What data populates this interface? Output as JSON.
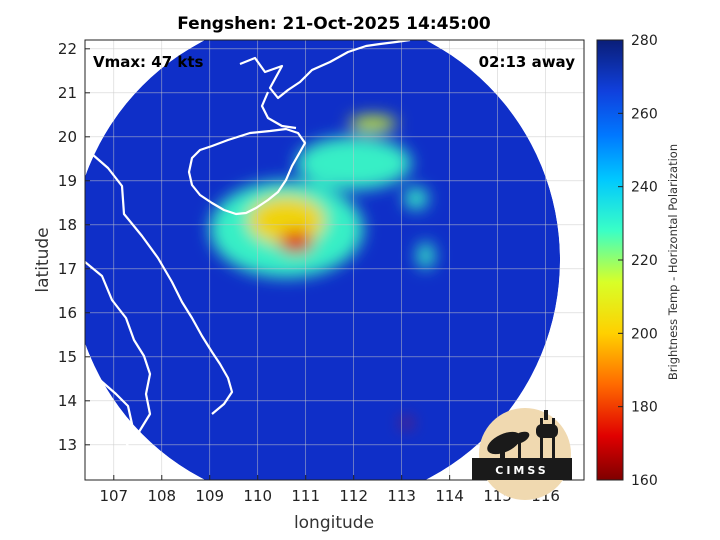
{
  "title": "Fengshen: 21-Oct-2025 14:45:00",
  "vmax_label": "Vmax: 47 kts",
  "time_away": "02:13 away",
  "xlabel": "longitude",
  "ylabel": "latitude",
  "colorbar_label": "Brightness Temp - Horizontal Polarization",
  "logo_text": "CIMSS",
  "colors": {
    "ocean_deep": "#0f2fc8",
    "land_outline": "#ffffff",
    "grid": "#c8c8c8"
  },
  "chart_data": {
    "type": "heatmap",
    "xlim": [
      106.4,
      116.8
    ],
    "ylim": [
      12.2,
      22.2
    ],
    "x_ticks": [
      107,
      108,
      109,
      110,
      111,
      112,
      113,
      114,
      115,
      116
    ],
    "y_ticks": [
      13,
      14,
      15,
      16,
      17,
      18,
      19,
      20,
      21,
      22
    ],
    "grid": true,
    "swath": {
      "center_lon": 111.2,
      "center_lat": 17.2,
      "radius_deg_x": 5.1,
      "radius_deg_y": 5.6
    },
    "colorbar": {
      "range": [
        160,
        280
      ],
      "ticks": [
        160,
        180,
        200,
        220,
        240,
        260,
        280
      ],
      "stops": [
        {
          "v": 160,
          "c": "#7f0000"
        },
        {
          "v": 172,
          "c": "#e00000"
        },
        {
          "v": 186,
          "c": "#ff6a00"
        },
        {
          "v": 200,
          "c": "#ffd000"
        },
        {
          "v": 214,
          "c": "#d8ff28"
        },
        {
          "v": 228,
          "c": "#3affc6"
        },
        {
          "v": 242,
          "c": "#00c8ff"
        },
        {
          "v": 254,
          "c": "#0078ff"
        },
        {
          "v": 266,
          "c": "#1040dd"
        },
        {
          "v": 280,
          "c": "#0a1e78"
        }
      ]
    },
    "features": [
      {
        "name": "core",
        "lon": 110.8,
        "lat": 17.6,
        "temp": 172,
        "rx": 0.35,
        "ry": 0.25
      },
      {
        "name": "inner-warm",
        "lon": 110.6,
        "lat": 18.1,
        "temp": 194,
        "rx": 0.8,
        "ry": 0.55
      },
      {
        "name": "halo",
        "lon": 110.6,
        "lat": 17.9,
        "temp": 222,
        "rx": 1.6,
        "ry": 1.1
      },
      {
        "name": "ne-band",
        "lon": 112.0,
        "lat": 19.4,
        "temp": 232,
        "rx": 1.2,
        "ry": 0.6
      },
      {
        "name": "n-band",
        "lon": 112.4,
        "lat": 20.3,
        "temp": 214,
        "rx": 0.5,
        "ry": 0.18
      },
      {
        "name": "e-band-1",
        "lon": 113.3,
        "lat": 18.6,
        "temp": 226,
        "rx": 0.25,
        "ry": 0.25
      },
      {
        "name": "e-band-2",
        "lon": 113.5,
        "lat": 17.3,
        "temp": 222,
        "rx": 0.18,
        "ry": 0.3
      },
      {
        "name": "s-band",
        "lon": 113.1,
        "lat": 13.5,
        "temp": 178,
        "rx": 0.1,
        "ry": 0.1
      }
    ]
  }
}
